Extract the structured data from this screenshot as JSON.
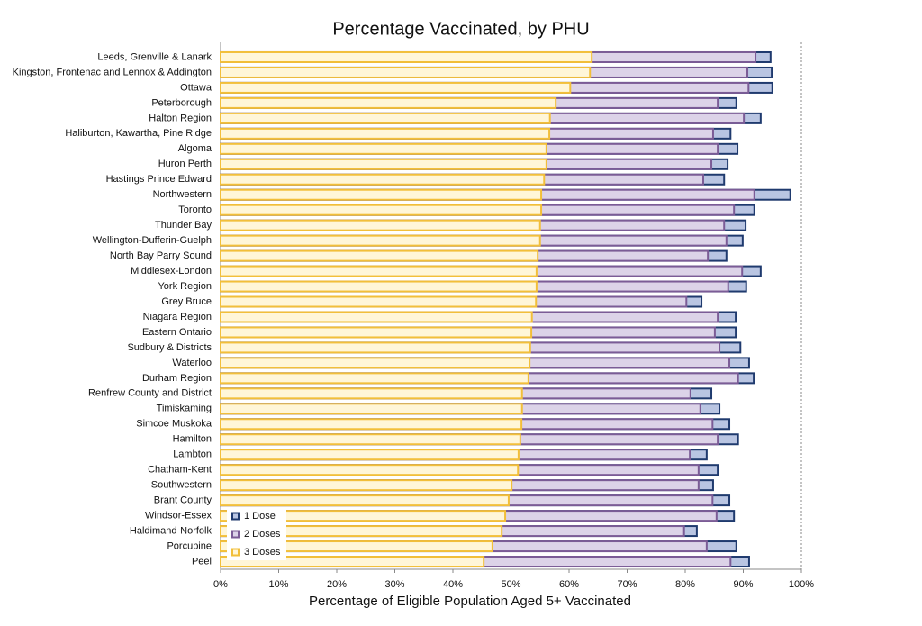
{
  "chart_data": {
    "type": "hbar-overlap",
    "title": "Percentage Vaccinated, by PHU",
    "x_label": "Percentage of Eligible Population Aged 5+ Vaccinated",
    "categories": [
      "Leeds, Grenville & Lanark",
      "Kingston, Frontenac and Lennox & Addington",
      "Ottawa",
      "Peterborough",
      "Halton Region",
      "Haliburton, Kawartha, Pine Ridge",
      "Algoma",
      "Huron Perth",
      "Hastings Prince Edward",
      "Northwestern",
      "Toronto",
      "Thunder Bay",
      "Wellington-Dufferin-Guelph",
      "North Bay Parry Sound",
      "Middlesex-London",
      "York Region",
      "Grey Bruce",
      "Niagara Region",
      "Eastern Ontario",
      "Sudbury & Districts",
      "Waterloo",
      "Durham Region",
      "Renfrew County and District",
      "Timiskaming",
      "Simcoe Muskoka",
      "Hamilton",
      "Lambton",
      "Chatham-Kent",
      "Southwestern",
      "Brant County",
      "Windsor-Essex",
      "Haldimand-Norfolk",
      "Porcupine",
      "Peel"
    ],
    "series": [
      {
        "name": "1 Dose",
        "color": "#b9c5e2",
        "stroke": "#1f3a6e",
        "values": [
          94.7,
          94.9,
          95.0,
          88.8,
          93.0,
          87.8,
          89.0,
          87.3,
          86.7,
          98.1,
          91.9,
          90.4,
          89.9,
          87.1,
          93.0,
          90.5,
          82.8,
          88.7,
          88.7,
          89.5,
          91.0,
          91.8,
          84.5,
          85.9,
          87.6,
          89.1,
          83.7,
          85.6,
          84.8,
          87.6,
          88.4,
          82.0,
          88.8,
          91.0
        ]
      },
      {
        "name": "2 Doses",
        "color": "#dcd3e8",
        "stroke": "#7b5c96",
        "values": [
          92.1,
          90.7,
          90.9,
          85.6,
          90.1,
          84.8,
          85.6,
          84.5,
          83.1,
          91.9,
          88.4,
          86.7,
          87.1,
          83.9,
          89.8,
          87.4,
          80.2,
          85.6,
          85.1,
          85.9,
          87.6,
          89.1,
          80.9,
          82.6,
          84.7,
          85.6,
          80.8,
          82.3,
          82.3,
          84.7,
          85.4,
          79.8,
          83.7,
          87.8
        ]
      },
      {
        "name": "3 Doses",
        "color": "#fff6d8",
        "stroke": "#f2bf3a",
        "values": [
          63.9,
          63.6,
          60.2,
          57.7,
          56.7,
          56.6,
          56.1,
          56.1,
          55.7,
          55.2,
          55.2,
          55.0,
          55.0,
          54.6,
          54.4,
          54.4,
          54.3,
          53.6,
          53.5,
          53.3,
          53.2,
          53.0,
          51.9,
          51.9,
          51.8,
          51.6,
          51.3,
          51.2,
          50.1,
          49.6,
          49.0,
          48.4,
          46.8,
          45.3
        ]
      }
    ],
    "xlim": [
      0,
      100
    ],
    "xticks": [
      {
        "value": 0,
        "label": "0%"
      },
      {
        "value": 10,
        "label": "10%"
      },
      {
        "value": 20,
        "label": "20%"
      },
      {
        "value": 30,
        "label": "30%"
      },
      {
        "value": 40,
        "label": "40%"
      },
      {
        "value": 50,
        "label": "50%"
      },
      {
        "value": 60,
        "label": "60%"
      },
      {
        "value": 70,
        "label": "70%"
      },
      {
        "value": 80,
        "label": "80%"
      },
      {
        "value": 90,
        "label": "90%"
      },
      {
        "value": 100,
        "label": "100%"
      }
    ],
    "legend": "lower left"
  }
}
